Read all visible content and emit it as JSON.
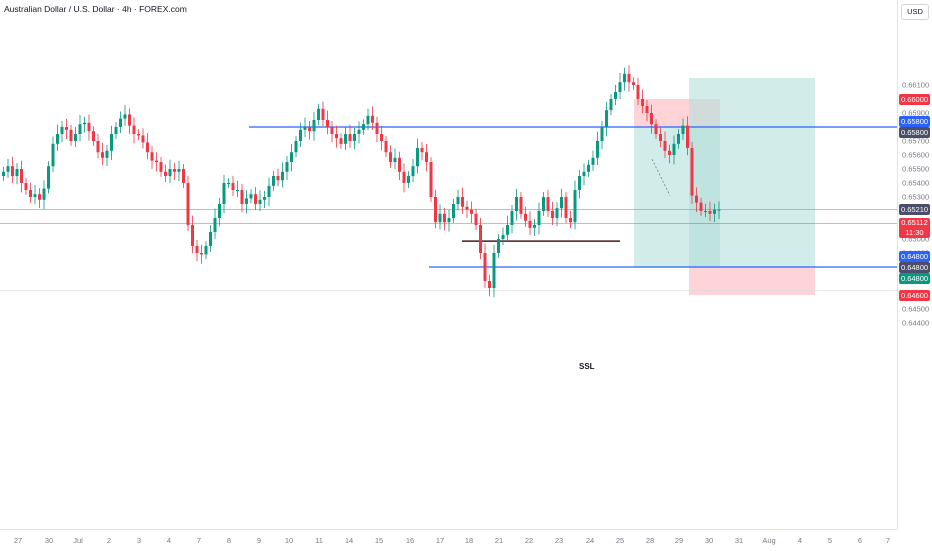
{
  "symbol_title": "Australian Dollar / U.S. Dollar · 4h · FOREX.com",
  "currency": "USD",
  "colors": {
    "bull": "#089981",
    "bear": "#f23645",
    "key_line": "#2962ff",
    "entry_tag": "#4a4e69",
    "target_zone": "#b2dfdb",
    "stop_zone": "#ffcdd2",
    "ssl_line": "#4a1a1a"
  },
  "price_axis": {
    "labels": [
      "0.66100",
      "0.65900",
      "0.65700",
      "0.65600",
      "0.65500",
      "0.65400",
      "0.65300",
      "0.65000",
      "0.64900",
      "0.64500",
      "0.64400"
    ],
    "tags": [
      {
        "value": "0.66000",
        "kind": "stop"
      },
      {
        "value": "0.65800",
        "kind": "key"
      },
      {
        "value": "0.65800",
        "kind": "entry"
      },
      {
        "value": "0.65210",
        "kind": "last"
      },
      {
        "value": "0.65112",
        "sub": "11:30",
        "kind": "current"
      },
      {
        "value": "0.64800",
        "kind": "key"
      },
      {
        "value": "0.64800",
        "kind": "entry"
      },
      {
        "value": "0.64800",
        "kind": "target"
      },
      {
        "value": "0.64600",
        "kind": "stop"
      }
    ]
  },
  "time_axis": [
    "27",
    "30",
    "Jul",
    "2",
    "3",
    "4",
    "7",
    "8",
    "9",
    "10",
    "11",
    "14",
    "15",
    "16",
    "17",
    "18",
    "21",
    "22",
    "23",
    "24",
    "25",
    "28",
    "29",
    "30",
    "31",
    "Aug",
    "4",
    "5",
    "6",
    "7"
  ],
  "annotations": {
    "ssl_label": "SSL"
  }
}
